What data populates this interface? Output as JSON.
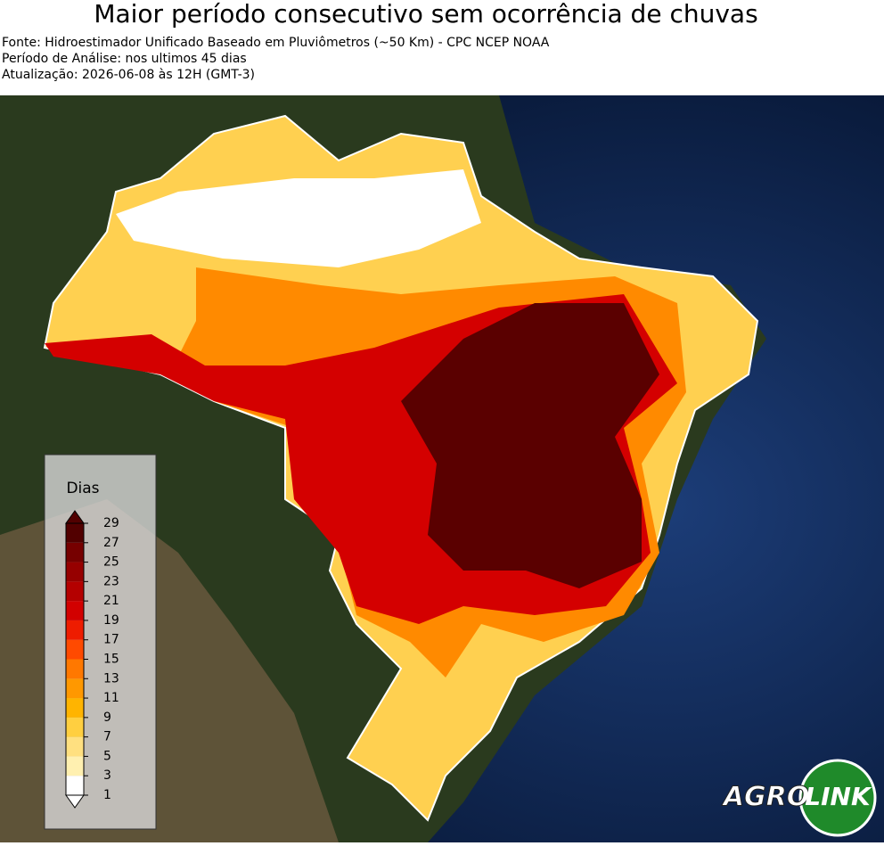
{
  "header": {
    "title": "Maior período consecutivo sem ocorrência de chuvas",
    "lines": [
      "Fonte: Hidroestimador Unificado Baseado em Pluviômetros (~50 Km) - CPC NCEP NOAA",
      "Período de Análise: nos ultimos 45 dias",
      "Atualização: 2026-06-08 às 12H (GMT-3)"
    ]
  },
  "legend": {
    "title": "Dias",
    "ticks": [
      1,
      3,
      5,
      7,
      9,
      11,
      13,
      15,
      17,
      19,
      21,
      23,
      25,
      27,
      29
    ],
    "colors": [
      "#ffffff",
      "#fff0b0",
      "#ffe080",
      "#ffcf40",
      "#ffb400",
      "#ff9800",
      "#ff7800",
      "#ff4a00",
      "#ee1c00",
      "#d20000",
      "#b40000",
      "#960000",
      "#760000",
      "#520000"
    ]
  },
  "logo": {
    "left": "AGRO",
    "right": "LINK"
  }
}
